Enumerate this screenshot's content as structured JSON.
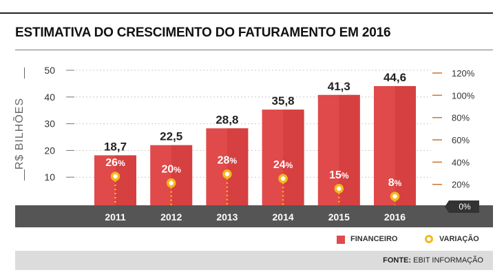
{
  "title": "ESTIMATIVA DO CRESCIMENTO DO FATURAMENTO EM 2016",
  "y_axis_label": "R$ BILHÕES",
  "legend": {
    "bars": "FINANCEIRO",
    "dots": "VARIAÇÃO"
  },
  "source": {
    "label": "FONTE:",
    "text": "EBIT INFORMAÇÃO"
  },
  "colors": {
    "bar": "#e04a4a",
    "bar_dark": "#c93535",
    "dot": "#f4b81c",
    "band": "#555555",
    "axis": "#c8742e"
  },
  "chart_data": {
    "type": "bar",
    "categories": [
      "2011",
      "2012",
      "2013",
      "2014",
      "2015",
      "2016"
    ],
    "series": [
      {
        "name": "FINANCEIRO",
        "values": [
          18.7,
          22.5,
          28.8,
          35.8,
          41.3,
          44.6
        ]
      },
      {
        "name": "VARIAÇÃO",
        "values": [
          26,
          20,
          28,
          24,
          15,
          8
        ]
      }
    ],
    "value_labels": [
      "18,7",
      "22,5",
      "28,8",
      "35,8",
      "41,3",
      "44,6"
    ],
    "pct_labels": [
      "26",
      "20",
      "28",
      "24",
      "15",
      "8"
    ],
    "left_axis": {
      "ticks": [
        10,
        20,
        30,
        40,
        50
      ],
      "ylim": [
        0,
        50
      ]
    },
    "right_axis": {
      "ticks": [
        "0%",
        "20%",
        "40%",
        "60%",
        "80%",
        "100%",
        "120%"
      ],
      "ylim": [
        0,
        120
      ]
    },
    "ylabel": "R$ BILHÕES"
  }
}
